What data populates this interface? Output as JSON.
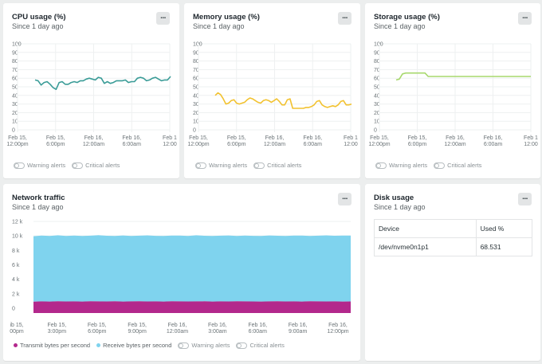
{
  "cards": {
    "cpu": {
      "title": "CPU usage (%)",
      "subtitle": "Since 1 day ago",
      "more": "...",
      "y_ticks": [
        "100",
        "90",
        "80",
        "70",
        "60",
        "50",
        "40",
        "30",
        "20",
        "10",
        "0"
      ],
      "x_ticks": [
        [
          "Feb 15,",
          "12:00pm"
        ],
        [
          "Feb 15,",
          "6:00pm"
        ],
        [
          "Feb 16,",
          "12:00am"
        ],
        [
          "Feb 16,",
          "6:00am"
        ],
        [
          "Feb 1",
          "12:00"
        ]
      ],
      "warning": "Warning alerts",
      "critical": "Critical alerts"
    },
    "memory": {
      "title": "Memory usage (%)",
      "subtitle": "Since 1 day ago",
      "more": "...",
      "y_ticks": [
        "100",
        "90",
        "80",
        "70",
        "60",
        "50",
        "40",
        "30",
        "20",
        "10",
        "0"
      ],
      "x_ticks": [
        [
          "Feb 15,",
          "12:00pm"
        ],
        [
          "Feb 15,",
          "6:00pm"
        ],
        [
          "Feb 16,",
          "12:00am"
        ],
        [
          "Feb 16,",
          "6:00am"
        ],
        [
          "Feb 1",
          "12:00"
        ]
      ],
      "warning": "Warning alerts",
      "critical": "Critical alerts"
    },
    "storage": {
      "title": "Storage usage (%)",
      "subtitle": "Since 1 day ago",
      "more": "...",
      "y_ticks": [
        "100",
        "90",
        "80",
        "70",
        "60",
        "50",
        "40",
        "30",
        "20",
        "10",
        "0"
      ],
      "x_ticks": [
        [
          "Feb 15,",
          "12:00pm"
        ],
        [
          "Feb 15,",
          "6:00pm"
        ],
        [
          "Feb 16,",
          "12:00am"
        ],
        [
          "Feb 16,",
          "6:00am"
        ],
        [
          "Feb 1",
          "12:00"
        ]
      ],
      "warning": "Warning alerts",
      "critical": "Critical alerts"
    },
    "network": {
      "title": "Network traffic",
      "subtitle": "Since 1 day ago",
      "more": "...",
      "y_ticks": [
        "12 k",
        "10 k",
        "8 k",
        "6 k",
        "4 k",
        "2 k",
        "0"
      ],
      "x_ticks": [
        [
          "ib 15,",
          "00pm"
        ],
        [
          "Feb 15,",
          "3:00pm"
        ],
        [
          "Feb 15,",
          "6:00pm"
        ],
        [
          "Feb 15,",
          "9:00pm"
        ],
        [
          "Feb 16,",
          "12:00am"
        ],
        [
          "Feb 16,",
          "3:00am"
        ],
        [
          "Feb 16,",
          "6:00am"
        ],
        [
          "Feb 16,",
          "9:00am"
        ],
        [
          "Feb 16,",
          "12:00pm"
        ]
      ],
      "legend_transmit": "Transmit bytes per second",
      "legend_receive": "Receive bytes per second",
      "warning": "Warning alerts",
      "critical": "Critical alerts"
    },
    "disk": {
      "title": "Disk usage",
      "subtitle": "Since 1 day ago",
      "more": "...",
      "columns": [
        "Device",
        "Used %"
      ],
      "rows": [
        [
          "/dev/nvme0n1p1",
          "68.531"
        ]
      ]
    }
  },
  "colors": {
    "cpu": "#3a9c97",
    "memory": "#f2c230",
    "storage": "#a7d86d",
    "transmit": "#b3288c",
    "receive": "#7fd3ee"
  },
  "chart_data": [
    {
      "type": "line",
      "series": [
        {
          "values": [
            58,
            57,
            52,
            55,
            56,
            53,
            49,
            47,
            55,
            56,
            53,
            53,
            55,
            56,
            55,
            57,
            57,
            59,
            60,
            59,
            58,
            61,
            60,
            54,
            56,
            54,
            55,
            57,
            57,
            57,
            58,
            55,
            56,
            56,
            60,
            61,
            60,
            57,
            58,
            60,
            61,
            59,
            57,
            58,
            58,
            62
          ]
        }
      ],
      "ylim": [
        0,
        100
      ],
      "x_range": [
        "Feb 15, 12:00pm",
        "Feb 16, 12:00pm"
      ]
    },
    {
      "type": "line",
      "series": [
        {
          "values": [
            40,
            43,
            41,
            36,
            30,
            31,
            34,
            35,
            31,
            30,
            31,
            32,
            35,
            37,
            36,
            34,
            32,
            31,
            34,
            35,
            34,
            32,
            34,
            36,
            33,
            29,
            29,
            35,
            36,
            25,
            25,
            25,
            25,
            25,
            26,
            26,
            27,
            29,
            33,
            34,
            29,
            27,
            26,
            27,
            28,
            27,
            29,
            33,
            34,
            29,
            29,
            30
          ]
        }
      ],
      "ylim": [
        0,
        100
      ],
      "x_range": [
        "Feb 15, 12:00pm",
        "Feb 16, 12:00pm"
      ]
    },
    {
      "type": "line",
      "series": [
        {
          "values": [
            58,
            59,
            65,
            66,
            66,
            66,
            66,
            66,
            66,
            66,
            62,
            62,
            62,
            62,
            62,
            62,
            62,
            62,
            62,
            62,
            62,
            62,
            62,
            62,
            62,
            62,
            62,
            62,
            62,
            62,
            62,
            62,
            62,
            62,
            62,
            62,
            62,
            62,
            62,
            62,
            62,
            62,
            62
          ]
        }
      ],
      "ylim": [
        0,
        100
      ],
      "x_range": [
        "Feb 15, 12:00pm",
        "Feb 16, 12:00pm"
      ]
    },
    {
      "type": "area",
      "series": [
        {
          "name": "Transmit bytes per second",
          "values": [
            900,
            950,
            930,
            960,
            940,
            950,
            920,
            960,
            950,
            940,
            960,
            930,
            950,
            960,
            940,
            950,
            930,
            960,
            950,
            940,
            950,
            960,
            930,
            950,
            940,
            960,
            950,
            940,
            930,
            950,
            960,
            940,
            950,
            930,
            960,
            950,
            940,
            950,
            930,
            940
          ]
        },
        {
          "name": "Receive bytes per second",
          "values": [
            9950,
            10050,
            10000,
            10080,
            10000,
            10050,
            9980,
            10030,
            10090,
            10020,
            9980,
            10060,
            10000,
            10030,
            10070,
            10010,
            9990,
            10050,
            10040,
            10000,
            10080,
            10020,
            9990,
            10030,
            10060,
            10000,
            10040,
            10010,
            10000,
            10060,
            10020,
            9980,
            10050,
            10040,
            10000,
            10030,
            10070,
            10020,
            10050,
            10040
          ]
        }
      ],
      "ylim": [
        0,
        12000
      ],
      "x_range": [
        "Feb 15, 12:00pm",
        "Feb 16, 12:00pm"
      ]
    },
    {
      "type": "table",
      "columns": [
        "Device",
        "Used %"
      ],
      "rows": [
        [
          "/dev/nvme0n1p1",
          68.531
        ]
      ]
    }
  ]
}
